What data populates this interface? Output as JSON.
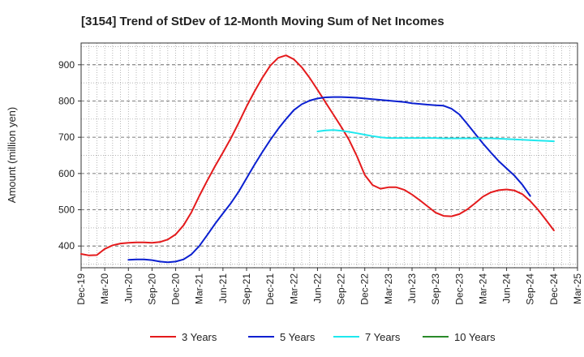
{
  "chart_data": {
    "type": "line",
    "title": "[3154]  Trend of StDev of 12-Month Moving Sum of Net Incomes",
    "ylabel": "Amount (million yen)",
    "xlabel": "",
    "ylim": [
      340,
      960
    ],
    "yticks": [
      400,
      500,
      600,
      700,
      800,
      900
    ],
    "x_tick_labels": [
      "Dec-19",
      "Mar-20",
      "Jun-20",
      "Sep-20",
      "Dec-20",
      "Mar-21",
      "Jun-21",
      "Sep-21",
      "Dec-21",
      "Mar-22",
      "Jun-22",
      "Sep-22",
      "Dec-22",
      "Mar-23",
      "Jun-23",
      "Sep-23",
      "Dec-23",
      "Mar-24",
      "Jun-24",
      "Sep-24",
      "Dec-24",
      "Mar-25"
    ],
    "grid": true,
    "legend_position": "bottom",
    "series": [
      {
        "name": "3 Years",
        "color": "#e41a1c",
        "start_month": 0,
        "values": [
          378,
          374,
          375,
          392,
          402,
          407,
          409,
          410,
          410,
          409,
          411,
          418,
          432,
          457,
          493,
          538,
          580,
          620,
          658,
          697,
          740,
          785,
          826,
          864,
          897,
          919,
          926,
          915,
          893,
          864,
          831,
          797,
          763,
          729,
          693,
          648,
          596,
          568,
          558,
          562,
          562,
          555,
          542,
          526,
          509,
          492,
          483,
          482,
          488,
          501,
          518,
          536,
          548,
          554,
          556,
          553,
          543,
          524,
          500,
          472,
          443
        ]
      },
      {
        "name": "5 Years",
        "color": "#0a1fd0",
        "start_month": 6,
        "values": [
          362,
          363,
          363,
          361,
          357,
          355,
          357,
          363,
          377,
          400,
          430,
          461,
          490,
          518,
          550,
          587,
          624,
          659,
          692,
          723,
          750,
          775,
          791,
          801,
          807,
          810,
          811,
          811,
          810,
          809,
          807,
          805,
          803,
          801,
          799,
          797,
          794,
          792,
          790,
          788,
          787,
          779,
          763,
          737,
          710,
          683,
          658,
          634,
          614,
          594,
          569,
          538
        ]
      },
      {
        "name": "7 Years",
        "color": "#1ee8ee",
        "start_month": 30,
        "values": [
          716,
          719,
          720,
          718,
          715,
          711,
          707,
          703,
          700,
          698,
          698,
          698,
          698,
          698,
          698,
          698,
          697,
          697,
          697,
          697,
          697,
          697,
          697,
          696,
          695,
          694,
          693,
          692,
          691,
          690,
          689
        ]
      },
      {
        "name": "10 Years",
        "color": "#2a8a2a",
        "start_month": 0,
        "values": []
      }
    ]
  }
}
